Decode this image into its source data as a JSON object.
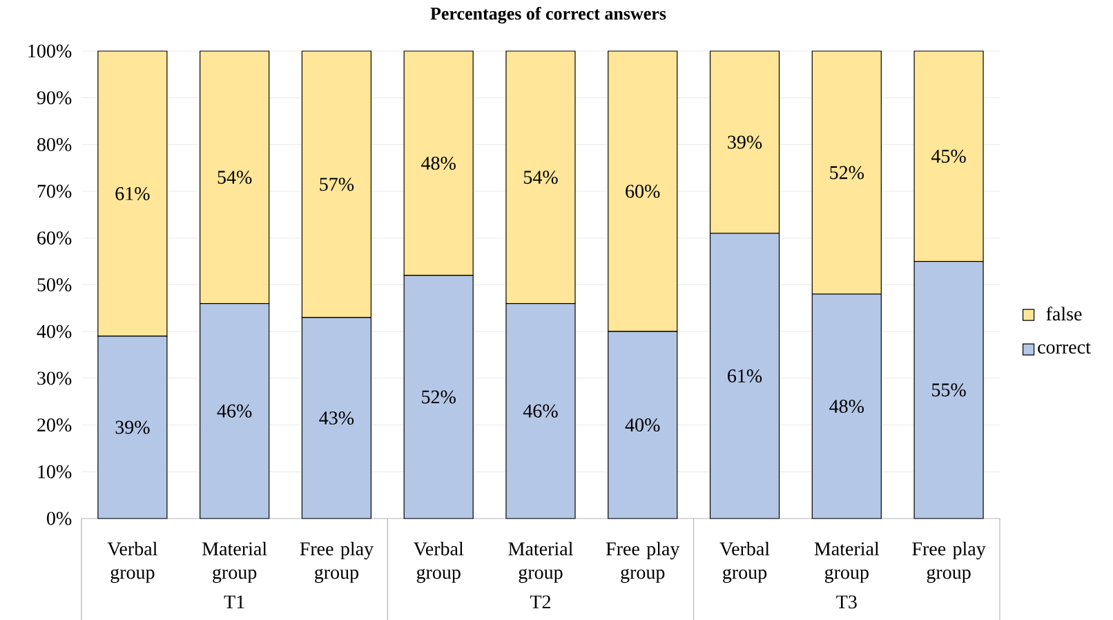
{
  "chart_data": {
    "type": "bar",
    "title": "Percentages of correct answers",
    "stacked": true,
    "categories": [
      "Verbal group",
      "Material group",
      "Free play group",
      "Verbal group",
      "Material group",
      "Free play group",
      "Verbal group",
      "Material group",
      "Free play group"
    ],
    "series": [
      {
        "name": "correct",
        "color": "#b4c7e7",
        "values": [
          39,
          46,
          43,
          52,
          46,
          40,
          61,
          48,
          55
        ],
        "value_labels": [
          "39%",
          "46%",
          "43%",
          "52%",
          "46%",
          "40%",
          "61%",
          "48%",
          "55%"
        ]
      },
      {
        "name": "false",
        "color": "#ffe699",
        "values": [
          61,
          54,
          57,
          48,
          54,
          60,
          39,
          52,
          45
        ],
        "value_labels": [
          "61%",
          "54%",
          "57%",
          "48%",
          "54%",
          "60%",
          "39%",
          "52%",
          "45%"
        ]
      }
    ],
    "ylim": [
      0,
      100
    ],
    "yticks": [
      {
        "value": 0,
        "label": "0%"
      },
      {
        "value": 10,
        "label": "10%"
      },
      {
        "value": 20,
        "label": "20%"
      },
      {
        "value": 30,
        "label": "30%"
      },
      {
        "value": 40,
        "label": "40%"
      },
      {
        "value": 50,
        "label": "50%"
      },
      {
        "value": 60,
        "label": "60%"
      },
      {
        "value": 70,
        "label": "70%"
      },
      {
        "value": 80,
        "label": "80%"
      },
      {
        "value": 90,
        "label": "90%"
      },
      {
        "value": 100,
        "label": "100%"
      }
    ],
    "grid": "y",
    "legend": "right",
    "annotations": [
      "T1",
      "T2",
      "T3"
    ]
  }
}
